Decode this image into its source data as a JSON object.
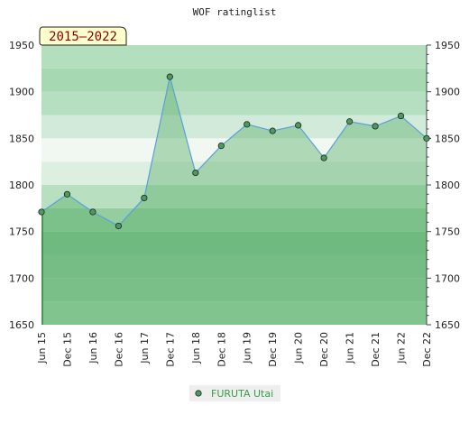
{
  "chart_data": {
    "type": "area",
    "title": "WOF ratinglist",
    "badge": "2015–2022",
    "xlabel": "",
    "ylabel": "",
    "categories": [
      "Jun 15",
      "Dec 15",
      "Jun 16",
      "Dec 16",
      "Jun 17",
      "Dec 17",
      "Jun 18",
      "Dec 18",
      "Jun 19",
      "Dec 19",
      "Jun 20",
      "Dec 20",
      "Jun 21",
      "Dec 21",
      "Jun 22",
      "Dec 22"
    ],
    "series": [
      {
        "name": "FURUTA Utai",
        "values": [
          1771,
          1790,
          1771,
          1756,
          1786,
          1916,
          1813,
          1842,
          1865,
          1858,
          1864,
          1829,
          1868,
          1863,
          1874,
          1850
        ]
      }
    ],
    "ylim": [
      1650,
      1950
    ],
    "yticks": [
      1650,
      1700,
      1750,
      1800,
      1850,
      1900,
      1950
    ],
    "grid": true,
    "legend_position": "bottom-center",
    "colors": {
      "line": "#5aa0d8",
      "area": "#86c496",
      "marker_fill": "#4c9a5e",
      "legend_text": "#3a9a4a",
      "badge_bg": "#ffffcc",
      "badge_text": "#8b0000"
    }
  }
}
